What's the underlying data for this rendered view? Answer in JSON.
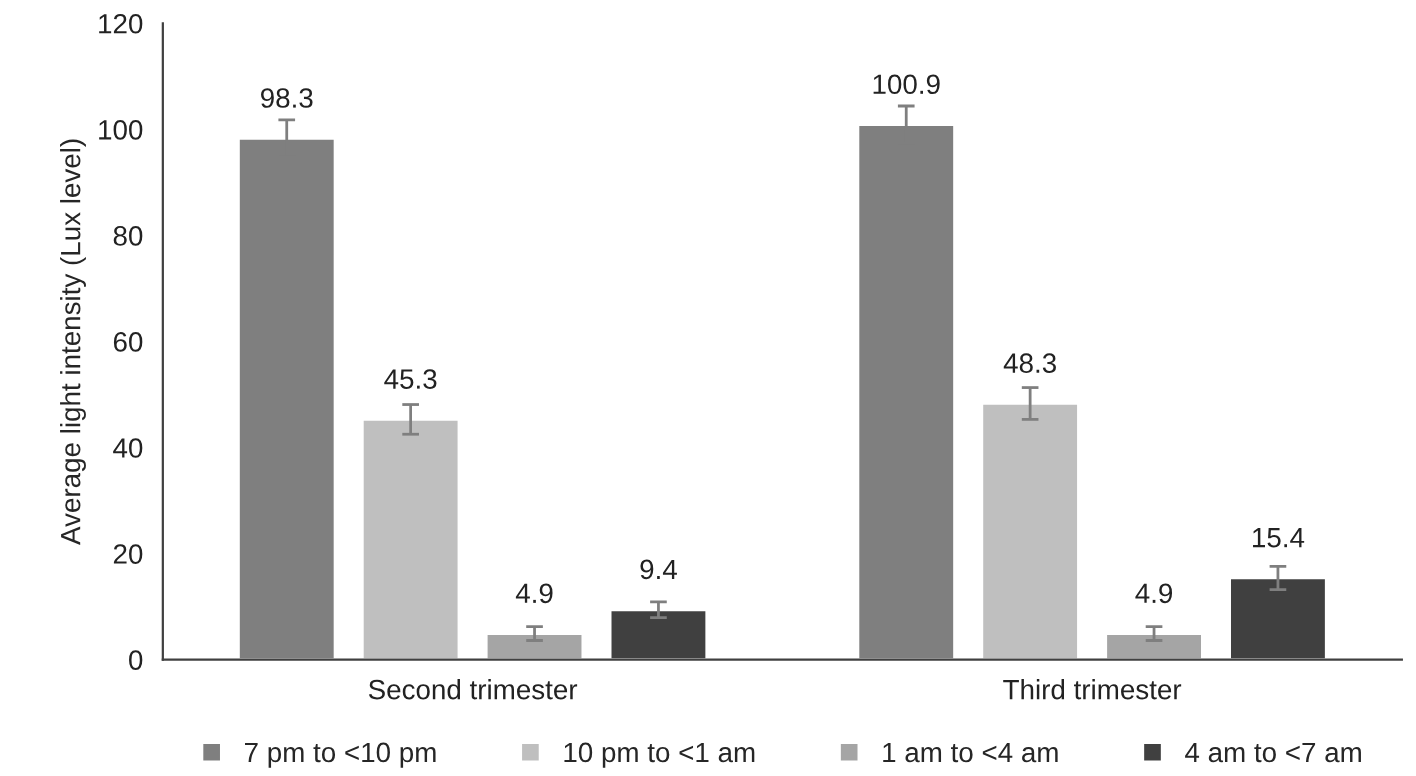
{
  "chart_data": {
    "type": "bar",
    "ylabel": "Average light intensity (Lux level)",
    "categories": [
      "Second trimester",
      "Third trimester"
    ],
    "series": [
      {
        "name": "7 pm to <10 pm",
        "color": "#7f7f7f",
        "values": [
          98.3,
          100.9
        ],
        "errors": [
          3.5,
          3.5
        ]
      },
      {
        "name": "10 pm to <1 am",
        "color": "#bfbfbf",
        "values": [
          45.3,
          48.3
        ],
        "errors": [
          2.8,
          3
        ]
      },
      {
        "name": "1 am to <4 am",
        "color": "#a5a5a5",
        "values": [
          4.9,
          4.9
        ],
        "errors": [
          1.3,
          1.3
        ]
      },
      {
        "name": "4 am to <7 am",
        "color": "#404040",
        "values": [
          9.4,
          15.4
        ],
        "errors": [
          1.5,
          2.2
        ]
      }
    ],
    "ylim": [
      0,
      120
    ],
    "yticks": [
      0,
      20,
      40,
      60,
      80,
      100,
      120
    ],
    "grid": false,
    "legend": "bottom",
    "data_labels": true
  }
}
